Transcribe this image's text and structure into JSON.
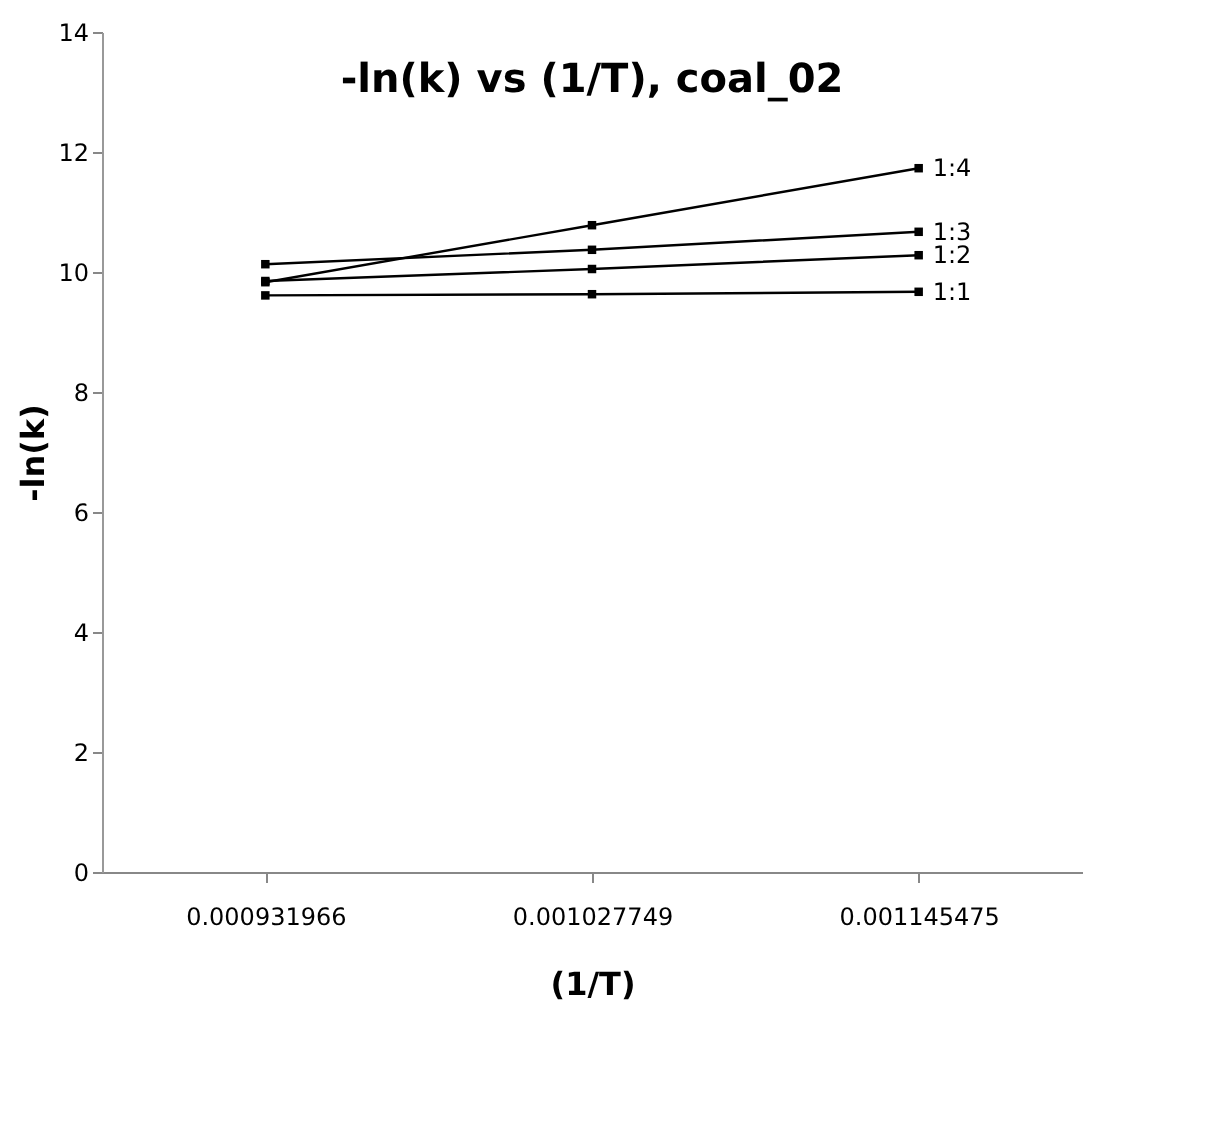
{
  "chart_data": {
    "type": "line",
    "title": "-ln(k) vs (1/T), coal_02",
    "xlabel": "(1/T)",
    "ylabel": "-ln(k)",
    "categories": [
      "0.000931966",
      "0.001027749",
      "0.001145475"
    ],
    "series": [
      {
        "name": "1:1",
        "color": "#000000",
        "values": [
          9.61,
          9.63,
          9.67
        ]
      },
      {
        "name": "1:2",
        "color": "#000000",
        "values": [
          9.85,
          10.05,
          10.28
        ]
      },
      {
        "name": "1:3",
        "color": "#000000",
        "values": [
          10.13,
          10.37,
          10.67
        ]
      },
      {
        "name": "1:4",
        "color": "#000000",
        "values": [
          9.83,
          10.78,
          11.73
        ]
      }
    ],
    "ylim": [
      0,
      14
    ],
    "yticks": [
      0,
      2,
      4,
      6,
      8,
      10,
      12,
      14
    ],
    "grid": false,
    "legend": false,
    "marker": "square",
    "line_style": "solid"
  }
}
